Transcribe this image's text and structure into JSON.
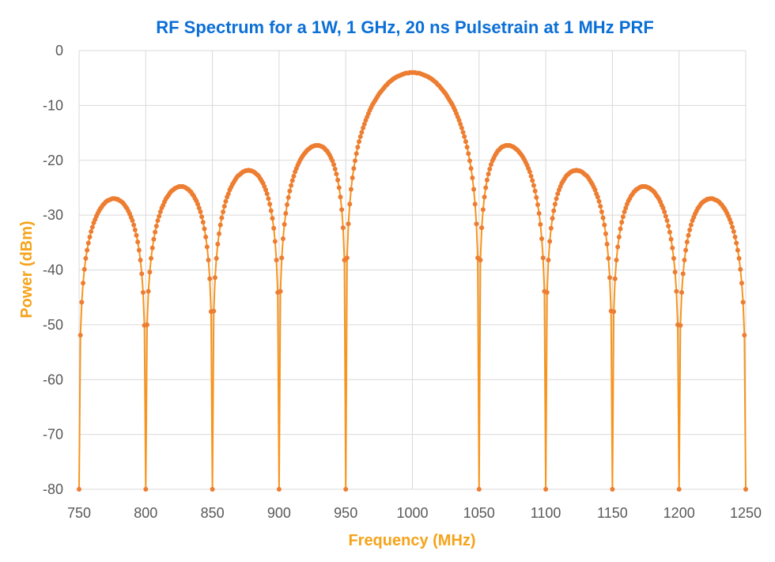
{
  "chart_data": {
    "type": "line",
    "title": "RF Spectrum for a 1W, 1 GHz, 20 ns Pulsetrain at 1 MHz PRF",
    "xlabel": "Frequency (MHz)",
    "ylabel": "Power (dBm)",
    "xlim": [
      750,
      1250
    ],
    "ylim": [
      -80,
      0
    ],
    "x_ticks": [
      "750",
      "800",
      "850",
      "900",
      "950",
      "1000",
      "1050",
      "1100",
      "1150",
      "1200",
      "1250"
    ],
    "y_ticks": [
      "0",
      "-10",
      "-20",
      "-30",
      "-40",
      "-50",
      "-60",
      "-70",
      "-80"
    ],
    "grid": true,
    "legend": "none",
    "markers": true,
    "colors": {
      "title": "#0b6fd6",
      "axis_label": "#f5a31a",
      "line": "#f7941d",
      "marker": "#ed7d31",
      "grid": "#d9d9d9",
      "tick": "#595959"
    },
    "x_first": 750,
    "x_step": 1,
    "y": [
      -80,
      -51.9,
      -45.9,
      -42.4,
      -39.9,
      -37.9,
      -36.4,
      -35.1,
      -34.0,
      -33.0,
      -32.2,
      -31.4,
      -30.8,
      -30.2,
      -29.7,
      -29.2,
      -28.8,
      -28.5,
      -28.1,
      -27.9,
      -27.6,
      -27.4,
      -27.3,
      -27.2,
      -27.1,
      -27.0,
      -27.0,
      -27.0,
      -27.1,
      -27.1,
      -27.3,
      -27.4,
      -27.6,
      -27.8,
      -28.1,
      -28.5,
      -28.8,
      -29.3,
      -29.8,
      -30.4,
      -31.0,
      -31.8,
      -32.7,
      -33.7,
      -34.9,
      -36.4,
      -38.2,
      -40.7,
      -44.1,
      -50.1,
      -80,
      -50.0,
      -43.9,
      -40.4,
      -37.9,
      -36.0,
      -34.4,
      -33.1,
      -32.0,
      -31.0,
      -30.2,
      -29.4,
      -28.7,
      -28.2,
      -27.6,
      -27.1,
      -26.7,
      -26.4,
      -26.0,
      -25.7,
      -25.5,
      -25.3,
      -25.1,
      -25.0,
      -24.9,
      -24.8,
      -24.8,
      -24.8,
      -24.8,
      -24.9,
      -25.0,
      -25.2,
      -25.3,
      -25.6,
      -25.8,
      -26.2,
      -26.5,
      -27.0,
      -27.4,
      -28.0,
      -28.7,
      -29.4,
      -30.3,
      -31.3,
      -32.5,
      -34.0,
      -35.8,
      -38.2,
      -41.6,
      -47.6,
      -80,
      -47.5,
      -41.4,
      -37.9,
      -35.3,
      -33.4,
      -31.8,
      -30.5,
      -29.4,
      -28.4,
      -27.5,
      -26.7,
      -26.1,
      -25.4,
      -24.9,
      -24.4,
      -24.0,
      -23.6,
      -23.2,
      -22.9,
      -22.7,
      -22.5,
      -22.3,
      -22.1,
      -22.0,
      -21.9,
      -21.9,
      -21.8,
      -21.9,
      -21.9,
      -22.0,
      -22.1,
      -22.3,
      -22.5,
      -22.7,
      -23.0,
      -23.4,
      -23.8,
      -24.2,
      -24.8,
      -25.4,
      -26.1,
      -27.0,
      -28.0,
      -29.2,
      -30.6,
      -32.4,
      -34.8,
      -38.2,
      -44.1,
      -80,
      -43.9,
      -37.8,
      -34.3,
      -31.7,
      -29.7,
      -28.1,
      -26.8,
      -25.6,
      -24.6,
      -23.7,
      -22.9,
      -22.1,
      -21.5,
      -20.9,
      -20.4,
      -19.9,
      -19.5,
      -19.1,
      -18.8,
      -18.5,
      -18.2,
      -18.0,
      -17.8,
      -17.6,
      -17.5,
      -17.4,
      -17.3,
      -17.3,
      -17.3,
      -17.3,
      -17.4,
      -17.5,
      -17.6,
      -17.8,
      -18.1,
      -18.3,
      -18.7,
      -19.1,
      -19.6,
      -20.1,
      -20.8,
      -21.6,
      -22.5,
      -23.6,
      -25.0,
      -26.7,
      -29.0,
      -32.3,
      -38.2,
      -80,
      -37.8,
      -31.6,
      -28.0,
      -25.3,
      -23.2,
      -21.5,
      -20.1,
      -18.8,
      -17.6,
      -16.6,
      -15.7,
      -14.9,
      -14.1,
      -13.4,
      -12.7,
      -12.1,
      -11.5,
      -10.9,
      -10.4,
      -9.9,
      -9.5,
      -9.1,
      -8.7,
      -8.3,
      -7.9,
      -7.6,
      -7.3,
      -7.0,
      -6.7,
      -6.4,
      -6.2,
      -5.9,
      -5.7,
      -5.5,
      -5.3,
      -5.1,
      -5.0,
      -4.8,
      -4.7,
      -4.6,
      -4.5,
      -4.4,
      -4.3,
      -4.2,
      -4.1,
      -4.1,
      -4.1,
      -4.0,
      -4.0,
      -4.0,
      -4.0,
      -4.0,
      -4.1,
      -4.1,
      -4.1,
      -4.2,
      -4.3,
      -4.4,
      -4.5,
      -4.6,
      -4.7,
      -4.8,
      -5.0,
      -5.1,
      -5.3,
      -5.5,
      -5.7,
      -5.9,
      -6.2,
      -6.4,
      -6.7,
      -7.0,
      -7.3,
      -7.6,
      -7.9,
      -8.3,
      -8.7,
      -9.1,
      -9.5,
      -9.9,
      -10.4,
      -10.9,
      -11.5,
      -12.1,
      -12.7,
      -13.4,
      -14.1,
      -14.9,
      -15.7,
      -16.6,
      -17.6,
      -18.8,
      -20.1,
      -21.5,
      -23.2,
      -25.3,
      -28.0,
      -31.6,
      -37.8,
      -80,
      -38.2,
      -32.3,
      -29.0,
      -26.7,
      -25.0,
      -23.6,
      -22.5,
      -21.6,
      -20.8,
      -20.1,
      -19.6,
      -19.1,
      -18.7,
      -18.3,
      -18.1,
      -17.8,
      -17.6,
      -17.5,
      -17.4,
      -17.3,
      -17.3,
      -17.3,
      -17.3,
      -17.4,
      -17.5,
      -17.6,
      -17.8,
      -18.0,
      -18.2,
      -18.5,
      -18.8,
      -19.1,
      -19.5,
      -19.9,
      -20.4,
      -20.9,
      -21.5,
      -22.1,
      -22.9,
      -23.7,
      -24.6,
      -25.6,
      -26.8,
      -28.1,
      -29.7,
      -31.7,
      -34.3,
      -37.8,
      -43.9,
      -80,
      -44.1,
      -38.2,
      -34.8,
      -32.4,
      -30.6,
      -29.2,
      -28.0,
      -27.0,
      -26.1,
      -25.4,
      -24.8,
      -24.2,
      -23.8,
      -23.4,
      -23.0,
      -22.7,
      -22.5,
      -22.3,
      -22.1,
      -22.0,
      -21.9,
      -21.9,
      -21.8,
      -21.9,
      -21.9,
      -22.0,
      -22.1,
      -22.3,
      -22.5,
      -22.7,
      -22.9,
      -23.2,
      -23.6,
      -24.0,
      -24.4,
      -24.9,
      -25.4,
      -26.1,
      -26.7,
      -27.5,
      -28.4,
      -29.4,
      -30.5,
      -31.8,
      -33.4,
      -35.3,
      -37.9,
      -41.4,
      -47.5,
      -80,
      -47.6,
      -41.6,
      -38.2,
      -35.8,
      -34.0,
      -32.5,
      -31.3,
      -30.3,
      -29.4,
      -28.7,
      -28.0,
      -27.4,
      -27.0,
      -26.5,
      -26.2,
      -25.8,
      -25.6,
      -25.3,
      -25.2,
      -25.0,
      -24.9,
      -24.8,
      -24.8,
      -24.8,
      -24.8,
      -24.9,
      -25.0,
      -25.1,
      -25.3,
      -25.5,
      -25.7,
      -26.0,
      -26.4,
      -26.7,
      -27.1,
      -27.6,
      -28.2,
      -28.7,
      -29.4,
      -30.2,
      -31.0,
      -32.0,
      -33.1,
      -34.4,
      -36.0,
      -37.9,
      -40.4,
      -43.9,
      -50.0,
      -80,
      -50.1,
      -44.1,
      -40.7,
      -38.2,
      -36.4,
      -34.9,
      -33.7,
      -32.7,
      -31.8,
      -31.0,
      -30.4,
      -29.8,
      -29.3,
      -28.8,
      -28.5,
      -28.1,
      -27.8,
      -27.6,
      -27.4,
      -27.3,
      -27.1,
      -27.1,
      -27.0,
      -27.0,
      -27.0,
      -27.1,
      -27.2,
      -27.3,
      -27.4,
      -27.6,
      -27.9,
      -28.1,
      -28.5,
      -28.8,
      -29.2,
      -29.7,
      -30.2,
      -30.8,
      -31.4,
      -32.2,
      -33.0,
      -34.0,
      -35.1,
      -36.4,
      -37.9,
      -39.9,
      -42.4,
      -45.9,
      -51.9,
      -80
    ]
  }
}
